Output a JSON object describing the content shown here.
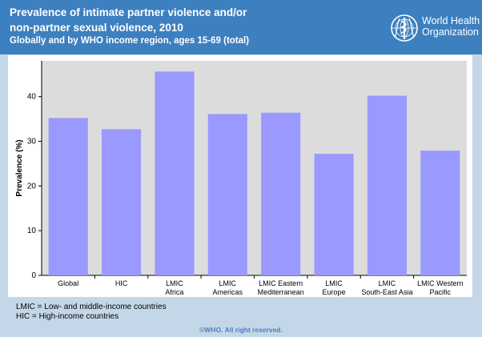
{
  "header": {
    "title_line1": "Prevalence of intimate partner violence and/or",
    "title_line2": "non-partner sexual violence, 2010",
    "subtitle": "Globally and by WHO income region, ages 15-69 (total)",
    "logo_line1": "World Health",
    "logo_line2": "Organization"
  },
  "chart_data": {
    "type": "bar",
    "ylabel": "Prevalence (%)",
    "xlabel": "",
    "ylim": [
      0,
      48
    ],
    "yticks": [
      0,
      10,
      20,
      30,
      40
    ],
    "grid": false,
    "categories": [
      [
        "Global"
      ],
      [
        "HIC"
      ],
      [
        "LMIC",
        "Africa"
      ],
      [
        "LMIC",
        "Americas"
      ],
      [
        "LMIC Eastern",
        "Mediterranean"
      ],
      [
        "LMIC",
        "Europe"
      ],
      [
        "LMIC",
        "South-East Asia"
      ],
      [
        "LMIC Western",
        "Pacific"
      ]
    ],
    "values": [
      35.2,
      32.7,
      45.6,
      36.1,
      36.4,
      27.2,
      40.2,
      27.9
    ],
    "colors": {
      "bar": "#9999ff",
      "plot_bg": "#dcdcdc"
    }
  },
  "footnotes": {
    "line1": "LMIC = Low- and middle-income countries",
    "line2": "HIC = High-income countries"
  },
  "copyright": "©WHO. All right reserved."
}
